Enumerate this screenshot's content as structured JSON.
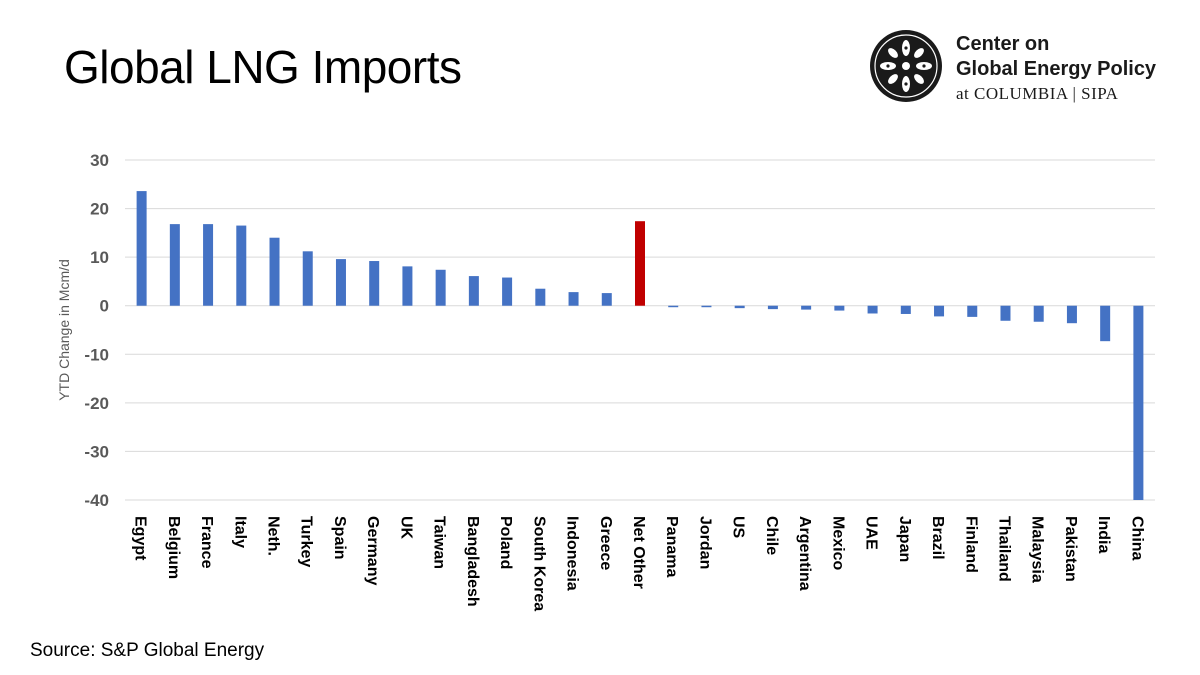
{
  "header": {
    "title": "Global LNG Imports"
  },
  "logo": {
    "line1": "Center on",
    "line2": "Global Energy Policy",
    "line3": "at COLUMBIA | SIPA"
  },
  "footer": {
    "source": "Source: S&P Global Energy"
  },
  "colors": {
    "bar": "#4472c4",
    "highlight": "#c00000",
    "grid": "#d9d9d9"
  },
  "chart_data": {
    "type": "bar",
    "title": "",
    "xlabel": "",
    "ylabel": "YTD Change in Mcm/d",
    "ylim": [
      -40,
      30
    ],
    "yticks": [
      30,
      20,
      10,
      0,
      -10,
      -20,
      -30,
      -40
    ],
    "grid": true,
    "categories": [
      "Egypt",
      "Belgium",
      "France",
      "Italy",
      "Neth.",
      "Turkey",
      "Spain",
      "Germany",
      "UK",
      "Taiwan",
      "Bangladesh",
      "Poland",
      "South Korea",
      "Indonesia",
      "Greece",
      "Net Other",
      "Panama",
      "Jordan",
      "US",
      "Chile",
      "Argentina",
      "Mexico",
      "UAE",
      "Japan",
      "Brazil",
      "Finland",
      "Thailand",
      "Malaysia",
      "Pakistan",
      "India",
      "China"
    ],
    "values": [
      23.6,
      16.8,
      16.8,
      16.5,
      14.0,
      11.2,
      9.6,
      9.2,
      8.1,
      7.4,
      6.1,
      5.8,
      3.5,
      2.8,
      2.6,
      17.4,
      -0.2,
      -0.3,
      -0.5,
      -0.7,
      -0.8,
      -1.0,
      -1.6,
      -1.7,
      -2.2,
      -2.3,
      -3.1,
      -3.3,
      -3.6,
      -7.3,
      -40.0
    ],
    "highlight_category": "Net Other"
  }
}
